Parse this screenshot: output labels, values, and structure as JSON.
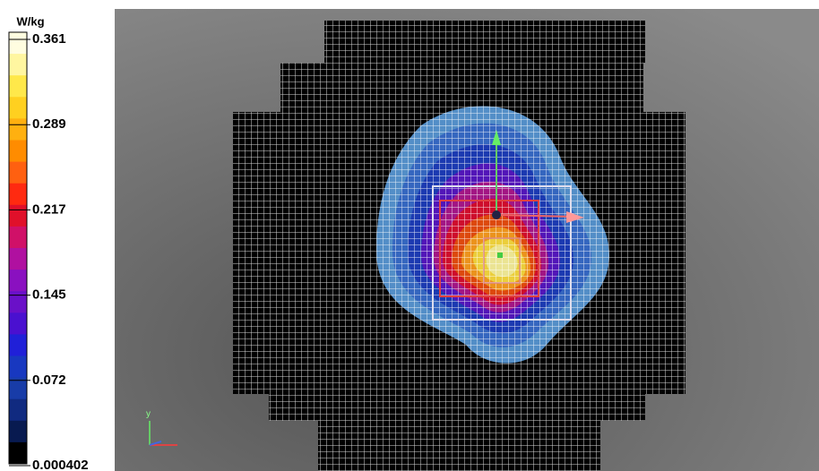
{
  "colorbar": {
    "unit": "W/kg",
    "labels": [
      "0.361",
      "0.289",
      "0.217",
      "0.145",
      "0.072",
      "0.000402"
    ]
  },
  "axes_label": "y"
}
